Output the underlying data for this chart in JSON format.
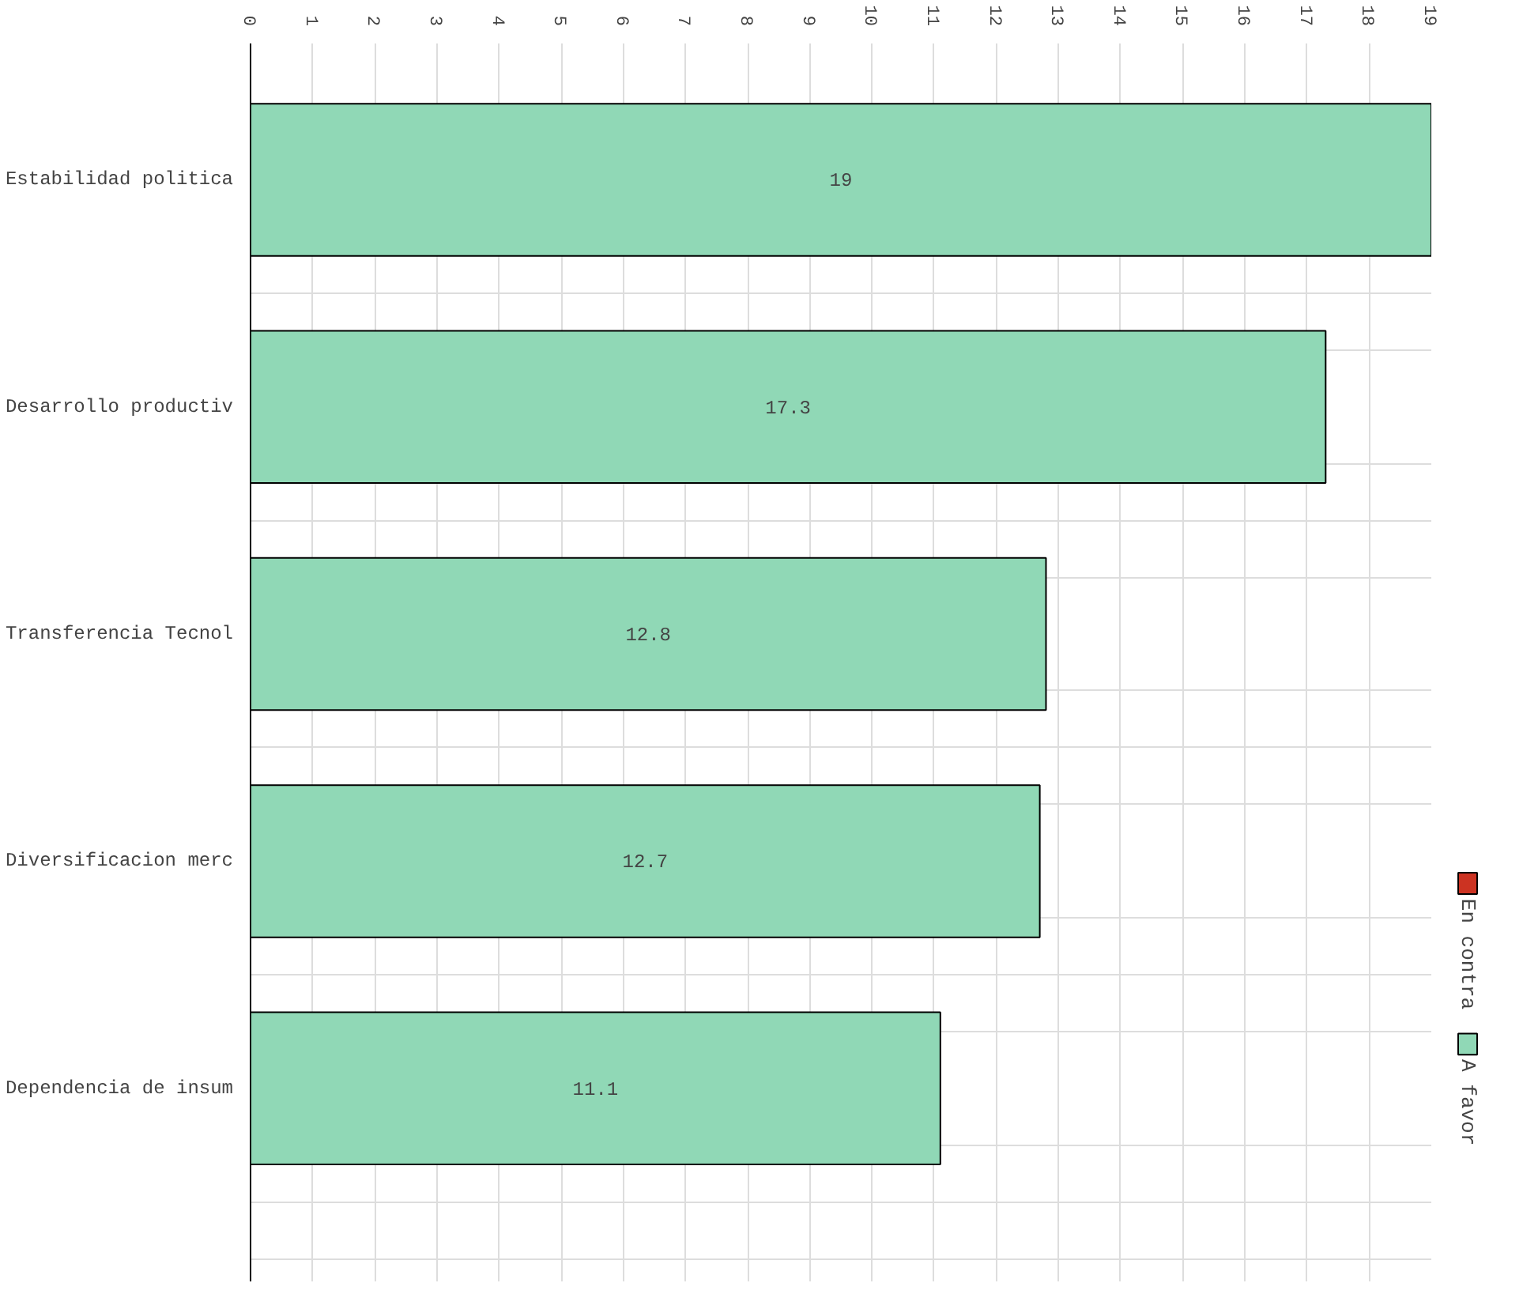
{
  "chart_data": {
    "type": "bar",
    "orientation": "horizontal",
    "categories": [
      "Estabilidad politica",
      "Desarrollo productiv",
      "Transferencia Tecnol",
      "Diversificacion merc",
      "Dependencia de insum"
    ],
    "series": [
      {
        "name": "En contra",
        "color": "#cc3322",
        "values": [
          null,
          null,
          null,
          null,
          null
        ]
      },
      {
        "name": "A favor",
        "color": "#90d8b6",
        "values": [
          19,
          17.3,
          12.8,
          12.7,
          11.1
        ]
      }
    ],
    "xlim": [
      0,
      19
    ],
    "xticks": [
      0,
      1,
      2,
      3,
      4,
      5,
      6,
      7,
      8,
      9,
      10,
      11,
      12,
      13,
      14,
      15,
      16,
      17,
      18,
      19
    ],
    "data_labels": true,
    "grid": true,
    "legend": "right"
  }
}
